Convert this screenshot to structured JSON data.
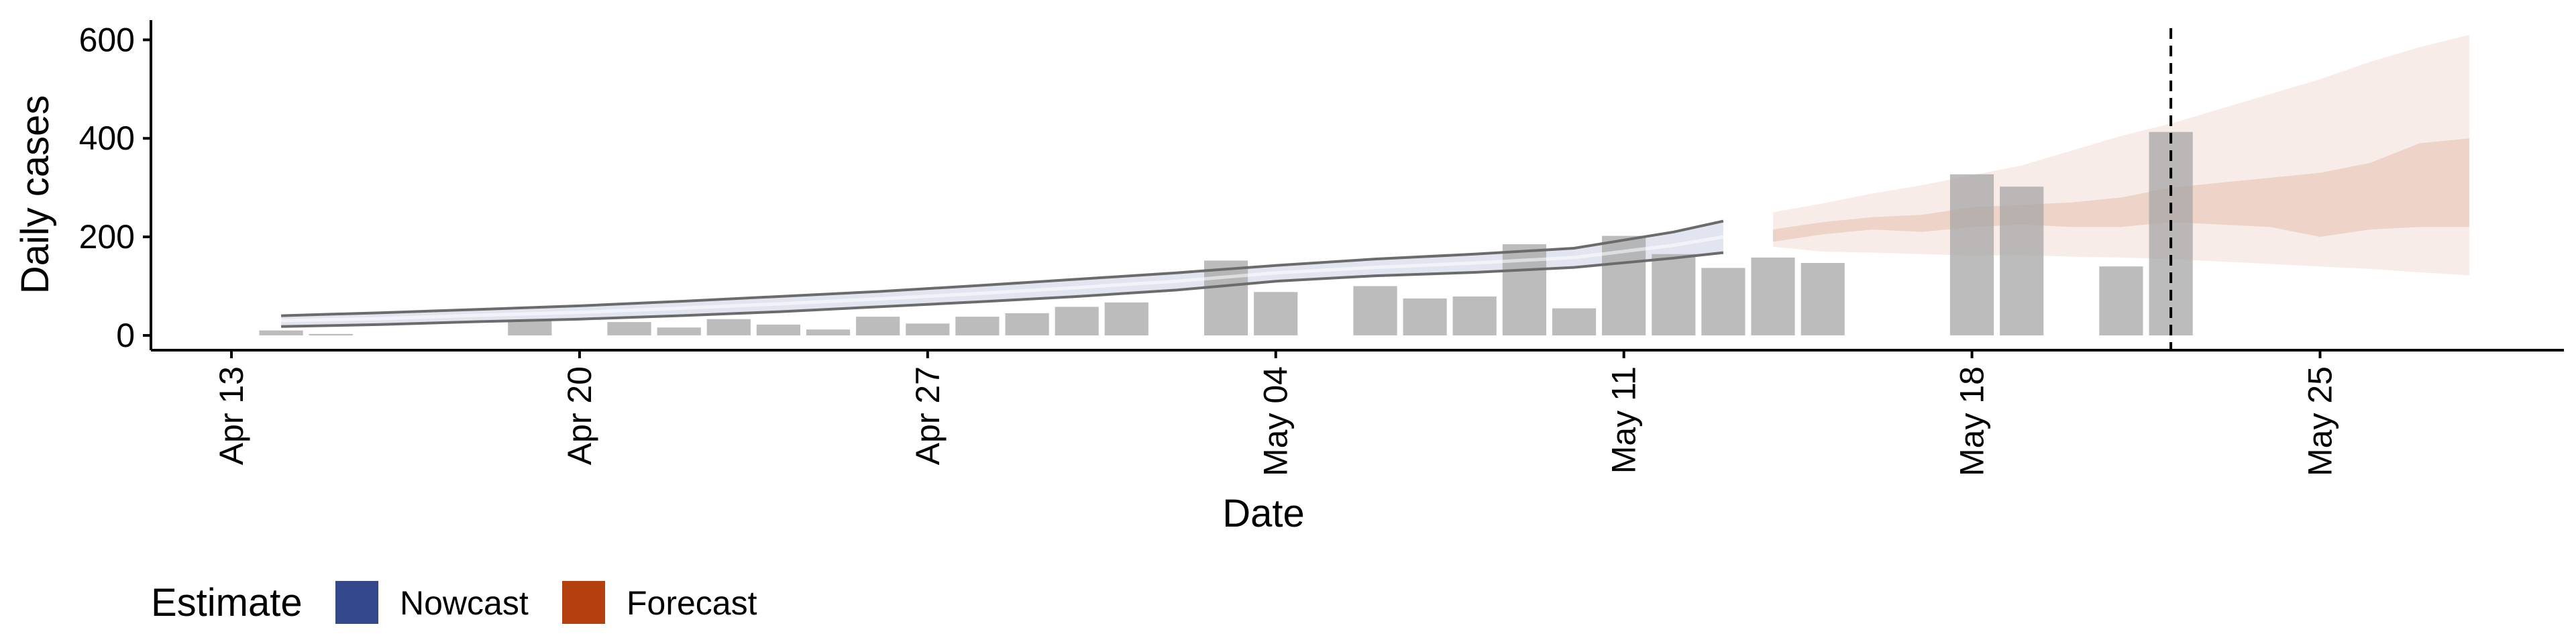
{
  "chart_data": {
    "type": "bar",
    "xlabel": "Date",
    "ylabel": "Daily cases",
    "ylim": [
      -30,
      640
    ],
    "xlim": [
      "2020-04-13",
      "2020-05-29"
    ],
    "y_ticks": [
      0,
      200,
      400,
      600
    ],
    "x_ticks": [
      {
        "date": "2020-04-13",
        "label": "Apr 13"
      },
      {
        "date": "2020-04-20",
        "label": "Apr 20"
      },
      {
        "date": "2020-04-27",
        "label": "Apr 27"
      },
      {
        "date": "2020-05-04",
        "label": "May 04"
      },
      {
        "date": "2020-05-11",
        "label": "May 11"
      },
      {
        "date": "2020-05-18",
        "label": "May 18"
      },
      {
        "date": "2020-05-25",
        "label": "May 25"
      }
    ],
    "grid": false,
    "vline": "2020-05-22",
    "observed": {
      "dates": [
        "2020-04-14",
        "2020-04-15",
        "2020-04-19",
        "2020-04-21",
        "2020-04-22",
        "2020-04-23",
        "2020-04-24",
        "2020-04-25",
        "2020-04-26",
        "2020-04-27",
        "2020-04-28",
        "2020-04-29",
        "2020-04-30",
        "2020-05-01",
        "2020-05-03",
        "2020-05-04",
        "2020-05-06",
        "2020-05-07",
        "2020-05-08",
        "2020-05-09",
        "2020-05-10",
        "2020-05-11",
        "2020-05-12",
        "2020-05-13",
        "2020-05-14",
        "2020-05-15",
        "2020-05-18",
        "2020-05-19",
        "2020-05-21",
        "2020-05-22"
      ],
      "values": [
        10,
        3,
        32,
        27,
        16,
        33,
        22,
        12,
        38,
        24,
        38,
        45,
        58,
        67,
        152,
        88,
        100,
        75,
        79,
        185,
        55,
        202,
        165,
        137,
        158,
        147,
        327,
        302,
        140,
        413
      ]
    },
    "series": [
      {
        "name": "Nowcast",
        "color": "#33498b",
        "dates": [
          "2020-04-14",
          "2020-04-16",
          "2020-04-18",
          "2020-04-20",
          "2020-04-22",
          "2020-04-24",
          "2020-04-26",
          "2020-04-28",
          "2020-04-30",
          "2020-05-02",
          "2020-05-04",
          "2020-05-06",
          "2020-05-08",
          "2020-05-10",
          "2020-05-12",
          "2020-05-13"
        ],
        "lower": [
          18,
          22,
          28,
          33,
          40,
          48,
          58,
          68,
          79,
          92,
          110,
          121,
          128,
          138,
          157,
          168
        ],
        "upper": [
          40,
          46,
          53,
          60,
          69,
          79,
          89,
          101,
          114,
          127,
          142,
          155,
          165,
          177,
          210,
          232
        ],
        "median": [
          30,
          34,
          41,
          47,
          55,
          64,
          74,
          85,
          97,
          110,
          127,
          138,
          147,
          158,
          183,
          200
        ]
      },
      {
        "name": "Forecast",
        "color": "#b5400f",
        "dates": [
          "2020-05-14",
          "2020-05-15",
          "2020-05-16",
          "2020-05-17",
          "2020-05-18",
          "2020-05-19",
          "2020-05-20",
          "2020-05-21",
          "2020-05-22",
          "2020-05-23",
          "2020-05-24",
          "2020-05-25",
          "2020-05-26",
          "2020-05-27",
          "2020-05-28"
        ],
        "lower90": [
          180,
          170,
          168,
          165,
          162,
          163,
          160,
          158,
          155,
          150,
          145,
          140,
          135,
          128,
          122
        ],
        "upper90": [
          250,
          268,
          288,
          305,
          325,
          345,
          375,
          405,
          430,
          460,
          490,
          520,
          555,
          585,
          610
        ],
        "lower50": [
          190,
          205,
          215,
          210,
          220,
          225,
          220,
          220,
          230,
          225,
          220,
          200,
          215,
          220,
          220
        ],
        "upper50": [
          215,
          230,
          240,
          245,
          260,
          265,
          270,
          280,
          300,
          310,
          320,
          330,
          350,
          390,
          400
        ]
      }
    ],
    "legend": {
      "title": "Estimate",
      "position": "bottom-left",
      "items": [
        "Nowcast",
        "Forecast"
      ]
    }
  }
}
